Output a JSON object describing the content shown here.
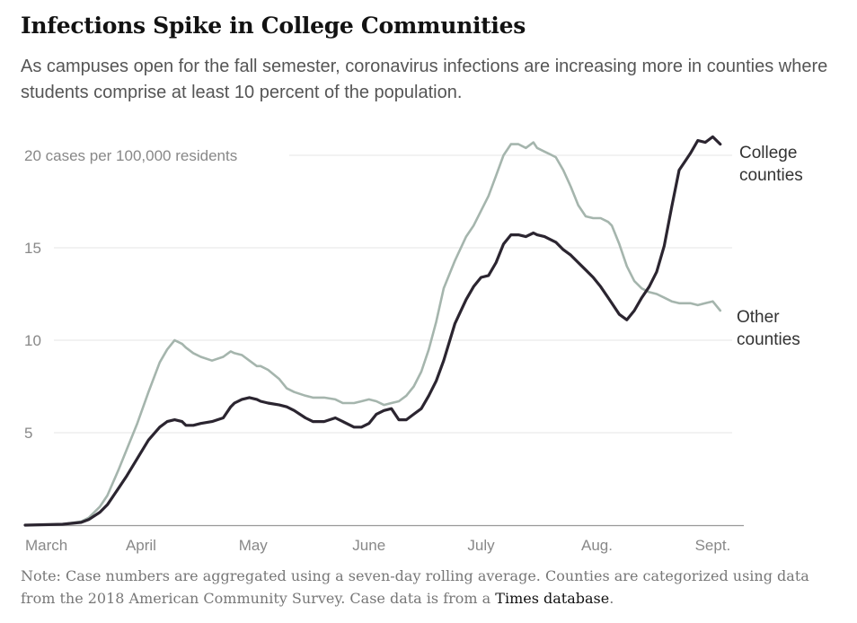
{
  "title": "Infections Spike in College Communities",
  "subtitle": "As campuses open for the fall semester, coronavirus infections are increasing more in counties where students comprise at least 10 percent of the population.",
  "note": {
    "text": "Note: Case numbers are aggregated using a seven-day rolling average. Counties are categorized using data from the 2018 American Community Survey. Case data is from a ",
    "link": "Times database",
    "end": "."
  },
  "colors": {
    "college": "#2b2530",
    "other": "#a5b5ad",
    "grid": "#e6e6e6",
    "axis": "#999999",
    "tick": "#888888"
  },
  "chart_data": {
    "type": "line",
    "title": "Infections Spike in College Communities",
    "ylabel": "20 cases per 100,000 residents",
    "ylim": [
      0,
      21.5
    ],
    "xlim_days_since_mar1": [
      0,
      190
    ],
    "y_ticks": [
      {
        "value": 20,
        "label": "20 cases per 100,000 residents"
      },
      {
        "value": 15,
        "label": "15"
      },
      {
        "value": 10,
        "label": "10"
      },
      {
        "value": 5,
        "label": "5"
      }
    ],
    "x_ticks": [
      {
        "day": 0,
        "label": "March"
      },
      {
        "day": 31,
        "label": "April"
      },
      {
        "day": 61,
        "label": "May"
      },
      {
        "day": 92,
        "label": "June"
      },
      {
        "day": 122,
        "label": "July"
      },
      {
        "day": 153,
        "label": "Aug."
      },
      {
        "day": 184,
        "label": "Sept."
      }
    ],
    "series": [
      {
        "name": "Other counties",
        "label_lines": [
          "Other",
          "counties"
        ],
        "x": [
          0,
          10,
          15,
          17,
          20,
          22,
          25,
          27,
          30,
          33,
          36,
          38,
          40,
          42,
          43,
          45,
          47,
          50,
          53,
          55,
          56,
          58,
          60,
          62,
          63,
          65,
          68,
          70,
          72,
          75,
          77,
          80,
          83,
          85,
          88,
          90,
          92,
          94,
          96,
          98,
          100,
          102,
          104,
          106,
          108,
          110,
          112,
          115,
          118,
          120,
          122,
          124,
          126,
          128,
          130,
          132,
          134,
          136,
          137,
          139,
          140,
          142,
          144,
          146,
          148,
          150,
          152,
          154,
          156,
          157,
          159,
          161,
          163,
          165,
          167,
          169,
          171,
          173,
          175,
          178,
          180,
          182,
          184,
          186
        ],
        "values": [
          0,
          0.05,
          0.2,
          0.4,
          1.0,
          1.6,
          3.0,
          4.0,
          5.5,
          7.2,
          8.8,
          9.5,
          10.0,
          9.8,
          9.6,
          9.3,
          9.1,
          8.9,
          9.1,
          9.4,
          9.3,
          9.2,
          8.9,
          8.6,
          8.6,
          8.4,
          7.9,
          7.4,
          7.2,
          7.0,
          6.9,
          6.9,
          6.8,
          6.6,
          6.6,
          6.7,
          6.8,
          6.7,
          6.5,
          6.6,
          6.7,
          7.0,
          7.5,
          8.3,
          9.5,
          11.0,
          12.8,
          14.3,
          15.6,
          16.2,
          17.0,
          17.8,
          18.9,
          20.0,
          20.6,
          20.6,
          20.4,
          20.7,
          20.4,
          20.2,
          20.1,
          19.9,
          19.2,
          18.3,
          17.3,
          16.7,
          16.6,
          16.6,
          16.4,
          16.2,
          15.2,
          14.0,
          13.2,
          12.8,
          12.6,
          12.5,
          12.3,
          12.1,
          12.0,
          12.0,
          11.9,
          12.0,
          12.1,
          11.6
        ]
      },
      {
        "name": "College counties",
        "label_lines": [
          "College",
          "counties"
        ],
        "x": [
          0,
          10,
          15,
          17,
          20,
          22,
          25,
          27,
          30,
          33,
          36,
          38,
          40,
          42,
          43,
          45,
          47,
          50,
          53,
          55,
          56,
          58,
          60,
          62,
          63,
          65,
          68,
          70,
          72,
          75,
          77,
          80,
          83,
          85,
          88,
          90,
          92,
          94,
          96,
          98,
          100,
          102,
          104,
          106,
          108,
          110,
          112,
          115,
          118,
          120,
          122,
          124,
          126,
          128,
          130,
          132,
          134,
          136,
          137,
          139,
          140,
          142,
          144,
          146,
          148,
          150,
          152,
          154,
          156,
          157,
          159,
          161,
          163,
          165,
          167,
          169,
          171,
          173,
          175,
          178,
          180,
          182,
          184,
          186
        ],
        "values": [
          0,
          0.05,
          0.15,
          0.3,
          0.7,
          1.1,
          2.0,
          2.6,
          3.6,
          4.6,
          5.3,
          5.6,
          5.7,
          5.6,
          5.4,
          5.4,
          5.5,
          5.6,
          5.8,
          6.4,
          6.6,
          6.8,
          6.9,
          6.8,
          6.7,
          6.6,
          6.5,
          6.4,
          6.2,
          5.8,
          5.6,
          5.6,
          5.8,
          5.6,
          5.3,
          5.3,
          5.5,
          6.0,
          6.2,
          6.3,
          5.7,
          5.7,
          6.0,
          6.3,
          7.0,
          7.8,
          8.9,
          10.9,
          12.2,
          12.9,
          13.4,
          13.5,
          14.2,
          15.2,
          15.7,
          15.7,
          15.6,
          15.8,
          15.7,
          15.6,
          15.5,
          15.3,
          14.9,
          14.6,
          14.2,
          13.8,
          13.4,
          12.9,
          12.3,
          12.0,
          11.4,
          11.1,
          11.6,
          12.3,
          12.9,
          13.7,
          15.1,
          17.2,
          19.2,
          20.1,
          20.8,
          20.7,
          21.0,
          20.6
        ]
      }
    ]
  }
}
